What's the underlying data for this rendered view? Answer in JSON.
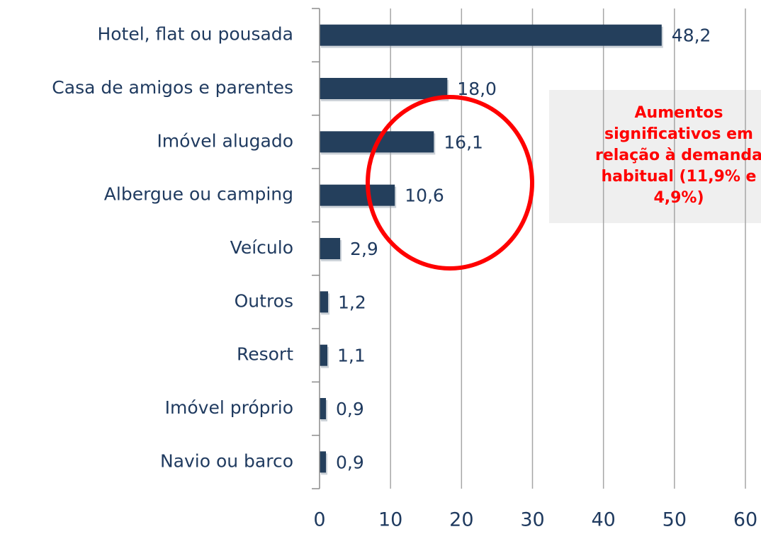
{
  "chart_data": {
    "type": "bar",
    "orientation": "horizontal",
    "categories": [
      "Hotel, flat ou pousada",
      "Casa de amigos e parentes",
      "Imóvel alugado",
      "Albergue ou camping",
      "Veículo",
      "Outros",
      "Resort",
      "Imóvel próprio",
      "Navio ou barco"
    ],
    "values": [
      48.2,
      18.0,
      16.1,
      10.6,
      2.9,
      1.2,
      1.1,
      0.9,
      0.9
    ],
    "value_labels": [
      "48,2",
      "18,0",
      "16,1",
      "10,6",
      "2,9",
      "1,2",
      "1,1",
      "0,9",
      "0,9"
    ],
    "color": "#243f5c",
    "xlim": [
      0,
      60
    ],
    "xticks": [
      0,
      10,
      20,
      30,
      40,
      50,
      60
    ],
    "grid": true,
    "annotation": [
      "Aumentos",
      "significativos em",
      "relação à demanda",
      "habitual (11,9% e",
      "4,9%)"
    ]
  }
}
